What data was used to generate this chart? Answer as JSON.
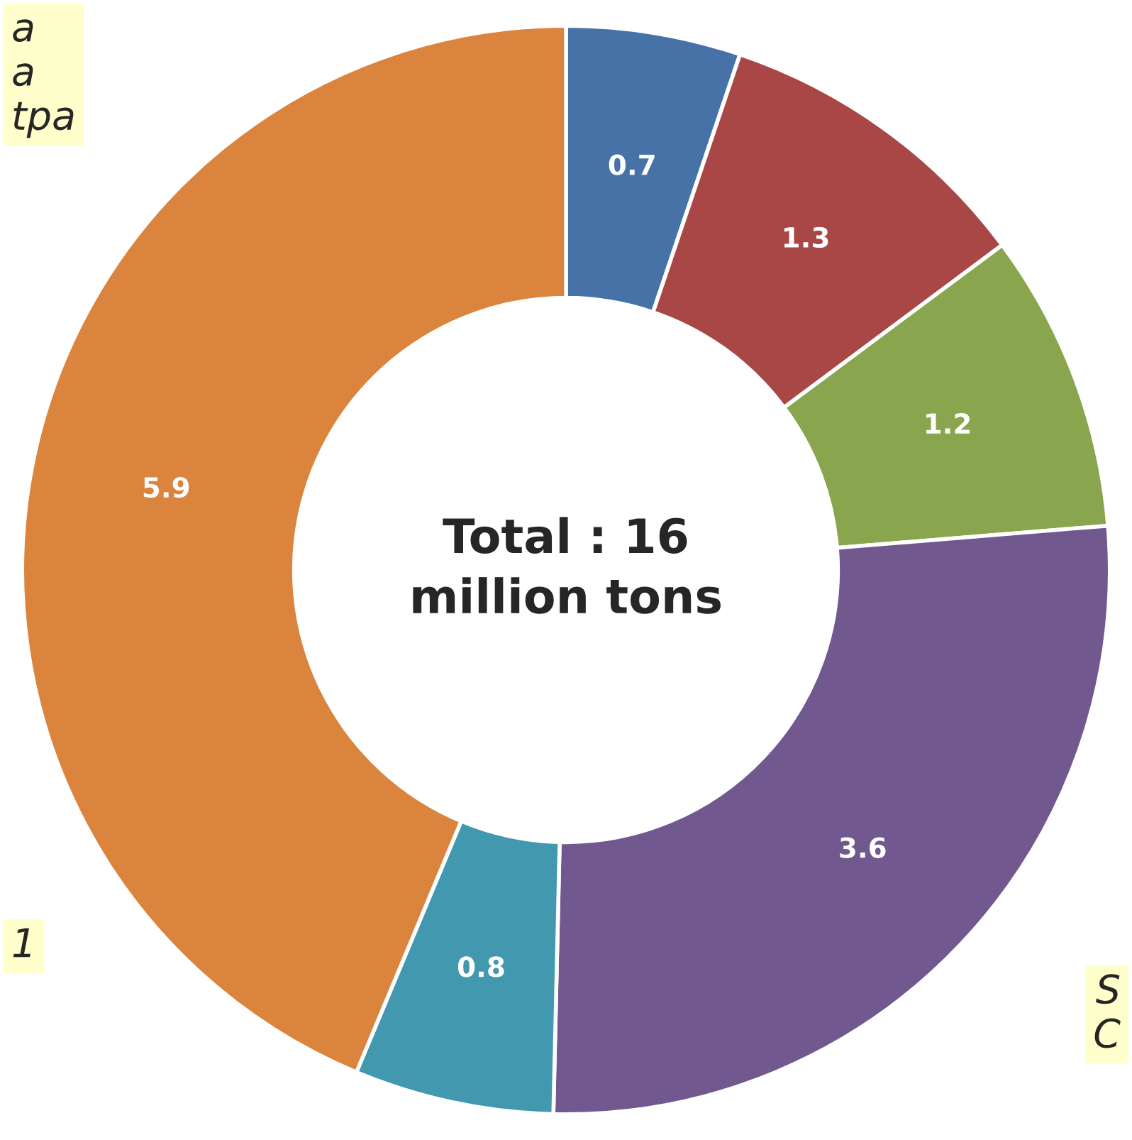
{
  "chart_data": {
    "type": "donut",
    "categories": [
      null,
      null,
      null,
      null,
      null,
      null
    ],
    "values": [
      0.7,
      1.3,
      1.2,
      3.6,
      0.8,
      5.9
    ],
    "colors": [
      "#4672a8",
      "#a94646",
      "#89a54e",
      "#71588f",
      "#4198af",
      "#db843d"
    ],
    "data_labels": true,
    "annotations": [
      "Total : 16\nmillion tons",
      "a\na\ntpa",
      "1",
      "S\nC"
    ]
  }
}
